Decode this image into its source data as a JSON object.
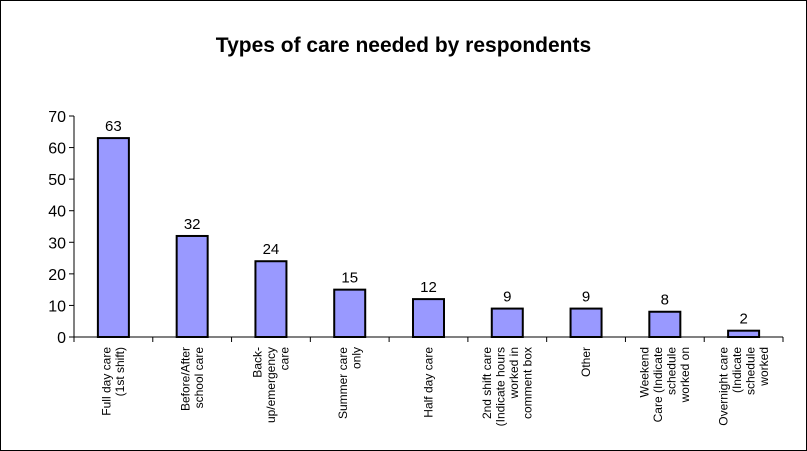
{
  "chart_data": {
    "type": "bar",
    "title": "Types of care needed by respondents",
    "categories": [
      [
        "Full day care",
        "(1st shift)"
      ],
      [
        "Before/After",
        "school care"
      ],
      [
        "Back-",
        "up/emergency",
        "care"
      ],
      [
        "Summer care",
        "only"
      ],
      [
        "Half day care"
      ],
      [
        "2nd shift care",
        "(Indicate hours",
        "worked in",
        "comment box"
      ],
      [
        "Other"
      ],
      [
        "Weekend",
        "Care (Indicate",
        "schedule",
        "worked on"
      ],
      [
        "Overnight care",
        "(Indicate",
        "schedule",
        "worked"
      ]
    ],
    "values": [
      63,
      32,
      24,
      15,
      12,
      9,
      9,
      8,
      2
    ],
    "ylim": [
      0,
      70
    ],
    "yticks": [
      0,
      10,
      20,
      30,
      40,
      50,
      60,
      70
    ],
    "bar_color": "#9999ff",
    "bar_border": "#000000",
    "grid": false,
    "legend": "none"
  }
}
